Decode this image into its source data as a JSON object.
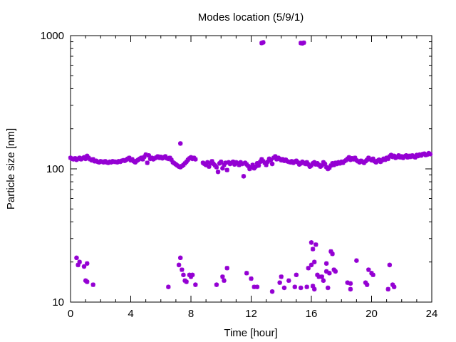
{
  "chart_data": {
    "type": "scatter",
    "title": "Modes location (5/9/1)",
    "xlabel": "Time [hour]",
    "ylabel": "Particle size [nm]",
    "xlim": [
      0,
      24
    ],
    "ylim": [
      10,
      1000
    ],
    "yscale": "log",
    "xticks": [
      0,
      4,
      8,
      12,
      16,
      20,
      24
    ],
    "xtick_labels": [
      "0",
      "4",
      "8",
      "12",
      "16",
      "20",
      "24"
    ],
    "yticks": [
      10,
      100,
      1000
    ],
    "ytick_labels": [
      "10",
      "100",
      "1000"
    ],
    "grid": false,
    "legend": "none",
    "marker_color": "#9400d3",
    "series": [
      {
        "points": [
          [
            0.0,
            121
          ],
          [
            0.1,
            119
          ],
          [
            0.2,
            118
          ],
          [
            0.3,
            120
          ],
          [
            0.4,
            117
          ],
          [
            0.5,
            119
          ],
          [
            0.6,
            121
          ],
          [
            0.7,
            118
          ],
          [
            0.8,
            120
          ],
          [
            0.9,
            122
          ],
          [
            1.0,
            119
          ],
          [
            1.1,
            125
          ],
          [
            1.2,
            121
          ],
          [
            1.3,
            118
          ],
          [
            1.4,
            116
          ],
          [
            1.5,
            118
          ],
          [
            1.6,
            114
          ],
          [
            1.7,
            115
          ],
          [
            1.8,
            113
          ],
          [
            1.9,
            112
          ],
          [
            2.0,
            114
          ],
          [
            2.1,
            113
          ],
          [
            2.2,
            112
          ],
          [
            2.3,
            114
          ],
          [
            2.4,
            112
          ],
          [
            2.5,
            111
          ],
          [
            2.6,
            113
          ],
          [
            2.7,
            112
          ],
          [
            2.8,
            114
          ],
          [
            2.9,
            113
          ],
          [
            3.0,
            113
          ],
          [
            3.1,
            112
          ],
          [
            3.2,
            114
          ],
          [
            3.3,
            113
          ],
          [
            3.4,
            115
          ],
          [
            3.5,
            116
          ],
          [
            3.6,
            115
          ],
          [
            3.7,
            117
          ],
          [
            3.8,
            119
          ],
          [
            3.9,
            121
          ],
          [
            4.0,
            116
          ],
          [
            4.1,
            118
          ],
          [
            4.2,
            114
          ],
          [
            4.3,
            112
          ],
          [
            4.4,
            115
          ],
          [
            4.5,
            117
          ],
          [
            4.6,
            119
          ],
          [
            4.7,
            121
          ],
          [
            4.8,
            118
          ],
          [
            4.9,
            123
          ],
          [
            5.0,
            128
          ],
          [
            5.1,
            111
          ],
          [
            5.2,
            126
          ],
          [
            5.3,
            119
          ],
          [
            5.4,
            121
          ],
          [
            5.5,
            118
          ],
          [
            5.6,
            120
          ],
          [
            5.7,
            122
          ],
          [
            5.8,
            124
          ],
          [
            5.9,
            121
          ],
          [
            6.0,
            123
          ],
          [
            6.1,
            120
          ],
          [
            6.2,
            122
          ],
          [
            6.3,
            124
          ],
          [
            6.4,
            120
          ],
          [
            6.5,
            119
          ],
          [
            6.6,
            121
          ],
          [
            6.7,
            117
          ],
          [
            6.8,
            112
          ],
          [
            6.9,
            110
          ],
          [
            7.0,
            108
          ],
          [
            7.1,
            106
          ],
          [
            7.2,
            104
          ],
          [
            7.3,
            103
          ],
          [
            7.4,
            105
          ],
          [
            7.5,
            107
          ],
          [
            7.6,
            110
          ],
          [
            7.7,
            113
          ],
          [
            7.8,
            117
          ],
          [
            7.9,
            120
          ],
          [
            8.0,
            122
          ],
          [
            8.1,
            119
          ],
          [
            8.2,
            121
          ],
          [
            8.3,
            118
          ],
          [
            7.3,
            155
          ],
          [
            8.8,
            111
          ],
          [
            8.9,
            109
          ],
          [
            9.0,
            107
          ],
          [
            9.1,
            112
          ],
          [
            9.2,
            104
          ],
          [
            9.3,
            110
          ],
          [
            9.4,
            114
          ],
          [
            9.5,
            109
          ],
          [
            9.6,
            106
          ],
          [
            9.7,
            103
          ],
          [
            9.8,
            95
          ],
          [
            9.9,
            110
          ],
          [
            10.0,
            113
          ],
          [
            10.1,
            101
          ],
          [
            10.2,
            107
          ],
          [
            10.3,
            111
          ],
          [
            10.4,
            98
          ],
          [
            10.5,
            112
          ],
          [
            10.6,
            109
          ],
          [
            10.7,
            111
          ],
          [
            10.8,
            113
          ],
          [
            10.9,
            108
          ],
          [
            11.0,
            112
          ],
          [
            11.1,
            110
          ],
          [
            11.2,
            107
          ],
          [
            11.3,
            112
          ],
          [
            11.4,
            109
          ],
          [
            11.5,
            88
          ],
          [
            11.6,
            111
          ],
          [
            11.7,
            108
          ],
          [
            11.8,
            105
          ],
          [
            11.9,
            100
          ],
          [
            12.0,
            103
          ],
          [
            12.1,
            107
          ],
          [
            12.2,
            101
          ],
          [
            12.3,
            104
          ],
          [
            12.4,
            110
          ],
          [
            12.5,
            106
          ],
          [
            12.6,
            113
          ],
          [
            12.7,
            118
          ],
          [
            12.8,
            114
          ],
          [
            12.9,
            111
          ],
          [
            13.0,
            107
          ],
          [
            13.1,
            113
          ],
          [
            13.2,
            119
          ],
          [
            13.3,
            116
          ],
          [
            13.4,
            109
          ],
          [
            13.5,
            121
          ],
          [
            13.6,
            124
          ],
          [
            13.7,
            118
          ],
          [
            13.8,
            121
          ],
          [
            13.9,
            119
          ],
          [
            14.0,
            116
          ],
          [
            14.1,
            118
          ],
          [
            14.2,
            115
          ],
          [
            14.3,
            117
          ],
          [
            14.4,
            114
          ],
          [
            14.5,
            113
          ],
          [
            14.6,
            112
          ],
          [
            14.7,
            114
          ],
          [
            14.8,
            111
          ],
          [
            14.9,
            113
          ],
          [
            15.0,
            115
          ],
          [
            15.1,
            112
          ],
          [
            15.2,
            108
          ],
          [
            15.3,
            110
          ],
          [
            15.4,
            113
          ],
          [
            15.5,
            111
          ],
          [
            15.6,
            109
          ],
          [
            15.7,
            112
          ],
          [
            15.8,
            108
          ],
          [
            15.9,
            104
          ],
          [
            16.0,
            106
          ],
          [
            16.1,
            110
          ],
          [
            16.2,
            112
          ],
          [
            16.3,
            108
          ],
          [
            16.4,
            110
          ],
          [
            16.5,
            107
          ],
          [
            16.6,
            104
          ],
          [
            16.7,
            106
          ],
          [
            16.8,
            112
          ],
          [
            16.9,
            109
          ],
          [
            17.0,
            103
          ],
          [
            17.1,
            100
          ],
          [
            17.2,
            102
          ],
          [
            17.3,
            106
          ],
          [
            17.4,
            110
          ],
          [
            17.5,
            107
          ],
          [
            17.6,
            111
          ],
          [
            17.7,
            109
          ],
          [
            17.8,
            112
          ],
          [
            17.9,
            110
          ],
          [
            18.0,
            113
          ],
          [
            18.1,
            111
          ],
          [
            18.2,
            114
          ],
          [
            18.3,
            116
          ],
          [
            18.4,
            119
          ],
          [
            18.5,
            122
          ],
          [
            18.6,
            117
          ],
          [
            18.7,
            120
          ],
          [
            18.8,
            118
          ],
          [
            18.9,
            121
          ],
          [
            19.0,
            116
          ],
          [
            19.1,
            114
          ],
          [
            19.2,
            112
          ],
          [
            19.3,
            115
          ],
          [
            19.4,
            113
          ],
          [
            19.5,
            111
          ],
          [
            19.6,
            114
          ],
          [
            19.7,
            117
          ],
          [
            19.8,
            121
          ],
          [
            19.9,
            118
          ],
          [
            20.0,
            116
          ],
          [
            20.1,
            119
          ],
          [
            20.2,
            114
          ],
          [
            20.3,
            112
          ],
          [
            20.4,
            115
          ],
          [
            20.5,
            117
          ],
          [
            20.6,
            113
          ],
          [
            20.7,
            116
          ],
          [
            20.8,
            119
          ],
          [
            20.9,
            117
          ],
          [
            21.0,
            121
          ],
          [
            21.1,
            119
          ],
          [
            21.2,
            124
          ],
          [
            21.3,
            127
          ],
          [
            21.4,
            123
          ],
          [
            21.5,
            125
          ],
          [
            21.6,
            121
          ],
          [
            21.7,
            123
          ],
          [
            21.8,
            126
          ],
          [
            21.9,
            122
          ],
          [
            22.0,
            124
          ],
          [
            22.1,
            121
          ],
          [
            22.2,
            124
          ],
          [
            22.3,
            126
          ],
          [
            22.4,
            122
          ],
          [
            22.5,
            125
          ],
          [
            22.6,
            123
          ],
          [
            22.7,
            126
          ],
          [
            22.8,
            124
          ],
          [
            22.9,
            122
          ],
          [
            23.0,
            127
          ],
          [
            23.1,
            125
          ],
          [
            23.2,
            128
          ],
          [
            23.3,
            126
          ],
          [
            23.4,
            129
          ],
          [
            23.5,
            130
          ],
          [
            23.6,
            127
          ],
          [
            23.7,
            128
          ],
          [
            23.8,
            131
          ],
          [
            23.9,
            129
          ],
          [
            12.7,
            880
          ],
          [
            12.8,
            890
          ],
          [
            15.3,
            880
          ],
          [
            15.4,
            875
          ],
          [
            15.5,
            885
          ],
          [
            0.4,
            21.5
          ],
          [
            0.5,
            19
          ],
          [
            0.6,
            20
          ],
          [
            0.9,
            18.5
          ],
          [
            1.1,
            19.5
          ],
          [
            1.0,
            14.5
          ],
          [
            1.1,
            14.2
          ],
          [
            1.5,
            13.5
          ],
          [
            6.5,
            13
          ],
          [
            7.2,
            19
          ],
          [
            7.3,
            21.5
          ],
          [
            7.4,
            17.5
          ],
          [
            7.5,
            16
          ],
          [
            7.6,
            14.5
          ],
          [
            7.7,
            14.2
          ],
          [
            7.9,
            16
          ],
          [
            8.0,
            15.5
          ],
          [
            8.1,
            16
          ],
          [
            8.3,
            13.5
          ],
          [
            9.7,
            13.5
          ],
          [
            10.1,
            15.5
          ],
          [
            10.2,
            14.5
          ],
          [
            10.4,
            18
          ],
          [
            11.7,
            16.5
          ],
          [
            12.0,
            15
          ],
          [
            12.2,
            13
          ],
          [
            12.4,
            13
          ],
          [
            13.4,
            12
          ],
          [
            13.9,
            14
          ],
          [
            14.0,
            15.5
          ],
          [
            14.2,
            12.8
          ],
          [
            14.5,
            14.5
          ],
          [
            14.9,
            13
          ],
          [
            15.0,
            16
          ],
          [
            15.3,
            12.8
          ],
          [
            15.7,
            13
          ],
          [
            15.8,
            18
          ],
          [
            16.0,
            19
          ],
          [
            16.1,
            13.2
          ],
          [
            16.2,
            12.5
          ],
          [
            16.0,
            28
          ],
          [
            16.1,
            25
          ],
          [
            16.3,
            27
          ],
          [
            16.2,
            20
          ],
          [
            16.4,
            16
          ],
          [
            16.5,
            15.5
          ],
          [
            16.7,
            15.5
          ],
          [
            16.8,
            14.5
          ],
          [
            17.0,
            17
          ],
          [
            17.0,
            19.5
          ],
          [
            17.1,
            12.8
          ],
          [
            17.2,
            16.5
          ],
          [
            17.3,
            24
          ],
          [
            17.4,
            23
          ],
          [
            17.5,
            17.5
          ],
          [
            17.6,
            17
          ],
          [
            18.4,
            14
          ],
          [
            18.6,
            13.8
          ],
          [
            18.6,
            12.5
          ],
          [
            19.0,
            20.5
          ],
          [
            19.6,
            14
          ],
          [
            19.7,
            13.5
          ],
          [
            19.8,
            17.5
          ],
          [
            20.0,
            16.5
          ],
          [
            20.1,
            16
          ],
          [
            21.2,
            19
          ],
          [
            21.1,
            12.5
          ],
          [
            21.4,
            13.5
          ],
          [
            21.5,
            13
          ]
        ]
      }
    ]
  }
}
